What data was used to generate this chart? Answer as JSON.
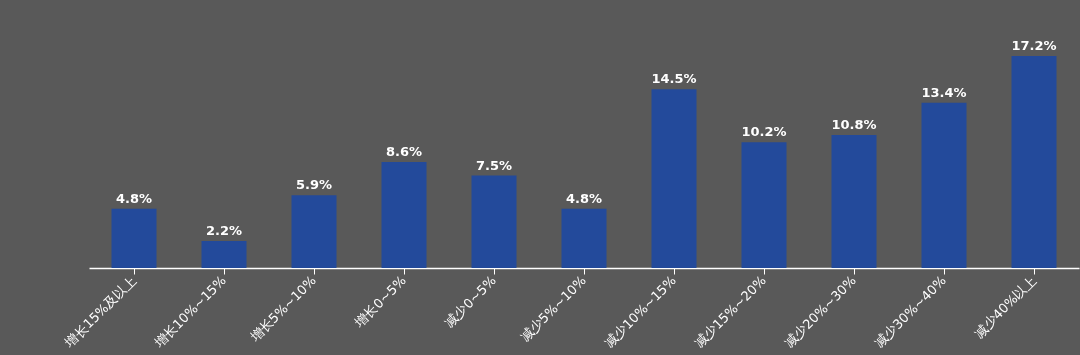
{
  "chart_data": {
    "type": "bar",
    "categories": [
      "增长15%及以上",
      "增长10%~15%",
      "增长5%~10%",
      "增长0~5%",
      "减少0~5%",
      "减少5%~10%",
      "减少10%~15%",
      "减少15%~20%",
      "减少20%~30%",
      "减少30%~40%",
      "减少40%以上"
    ],
    "values": [
      4.8,
      2.2,
      5.9,
      8.6,
      7.5,
      4.8,
      14.5,
      10.2,
      10.8,
      13.4,
      17.2
    ],
    "value_labels": [
      "4.8%",
      "2.2%",
      "5.9%",
      "8.6%",
      "7.5%",
      "4.8%",
      "14.5%",
      "10.2%",
      "10.8%",
      "13.4%",
      "17.2%"
    ],
    "color": "#234a9b",
    "tick_labels": "x"
  }
}
